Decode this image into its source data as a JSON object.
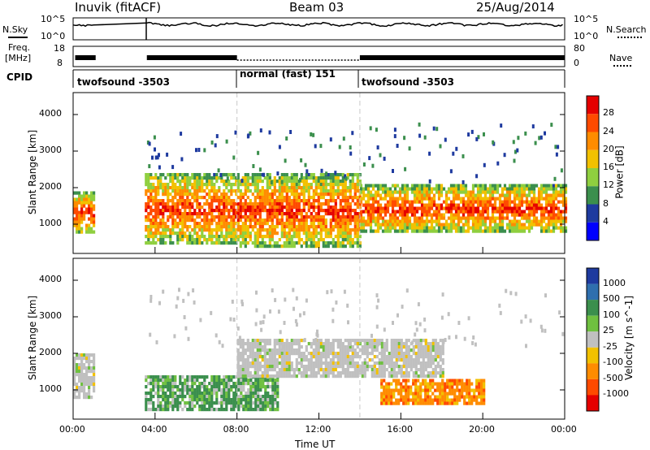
{
  "header": {
    "title": "Inuvik (fitACF)",
    "beam": "Beam 03",
    "date": "25/Aug/2014"
  },
  "noise_panel": {
    "left_label": "N.Sky",
    "right_label": "N.Search",
    "left_ticks": [
      "10^5",
      "10^0"
    ],
    "right_ticks": [
      "10^5",
      "10^0"
    ]
  },
  "freq_panel": {
    "label_line1": "Freq.",
    "label_line2": "[MHz]",
    "left_ticks": [
      "18",
      "8"
    ],
    "right_ticks": [
      "80",
      "0"
    ],
    "right_label": "Nave"
  },
  "cpid": {
    "label": "CPID",
    "programs": [
      {
        "name": "twofsound",
        "id": "-3503",
        "start_h": 0,
        "end_h": 8
      },
      {
        "name": "normal (fast)",
        "id": "151",
        "start_h": 8,
        "end_h": 14
      },
      {
        "name": "twofsound",
        "id": "-3503",
        "start_h": 14,
        "end_h": 24
      }
    ]
  },
  "colors": {
    "line": "#000000",
    "divider": "#c8c8c8"
  },
  "chart_data": [
    {
      "type": "heatmap",
      "title": "",
      "ylabel": "Slant Range [km]",
      "xlabel": "",
      "xlim": [
        0,
        24
      ],
      "ylim": [
        200,
        4600
      ],
      "yticks": [
        1000,
        2000,
        3000,
        4000
      ],
      "colorbar": {
        "label": "Power [dB]",
        "ticks": [
          "28",
          "24",
          "20",
          "16",
          "12",
          "8",
          "4"
        ],
        "colors": [
          "#e50000",
          "#ff4a00",
          "#ff8c00",
          "#f2c100",
          "#8fcf3f",
          "#3b8f4d",
          "#1e3a9f",
          "#0000ff"
        ]
      },
      "observations": [
        {
          "t_start": 0.0,
          "t_end": 1.0,
          "r_min": 800,
          "r_max": 1900,
          "level": "6-30 dB"
        },
        {
          "t_start": 3.5,
          "t_end": 8.0,
          "r_min": 500,
          "r_max": 2400,
          "level": "8-30 dB"
        },
        {
          "t_start": 8.0,
          "t_end": 14.0,
          "r_min": 400,
          "r_max": 2400,
          "level": "4-30 dB"
        },
        {
          "t_start": 14.0,
          "t_end": 24.0,
          "r_min": 800,
          "r_max": 2100,
          "level": "8-30 dB"
        }
      ]
    },
    {
      "type": "heatmap",
      "title": "",
      "ylabel": "Slant Range [km]",
      "xlabel": "Time UT",
      "xlim": [
        0,
        24
      ],
      "ylim": [
        200,
        4600
      ],
      "xticks": [
        "00:00",
        "04:00",
        "08:00",
        "12:00",
        "16:00",
        "20:00",
        "00:00"
      ],
      "yticks": [
        1000,
        2000,
        3000,
        4000
      ],
      "colorbar": {
        "label": "Velocity [m s^-1]",
        "ticks": [
          "1000",
          "500",
          "100",
          "25",
          "-25",
          "-100",
          "-500",
          "-1000"
        ],
        "colors": [
          "#1e3a9f",
          "#2f6fae",
          "#3b8f4d",
          "#6fc040",
          "#c0c0c0",
          "#f2c100",
          "#ff8c00",
          "#ff4a00",
          "#e50000"
        ]
      },
      "observations": [
        {
          "t_start": 0.0,
          "t_end": 1.0,
          "r_min": 800,
          "r_max": 2000,
          "level": "-25 to 25 m/s"
        },
        {
          "t_start": 3.5,
          "t_end": 10.0,
          "r_min": 500,
          "r_max": 1400,
          "level": "100 to 500 m/s"
        },
        {
          "t_start": 8.0,
          "t_end": 18.0,
          "r_min": 1400,
          "r_max": 2400,
          "level": "-25 to 25 m/s"
        },
        {
          "t_start": 15.0,
          "t_end": 20.0,
          "r_min": 600,
          "r_max": 1300,
          "level": "-100 to -500 m/s"
        }
      ]
    }
  ]
}
